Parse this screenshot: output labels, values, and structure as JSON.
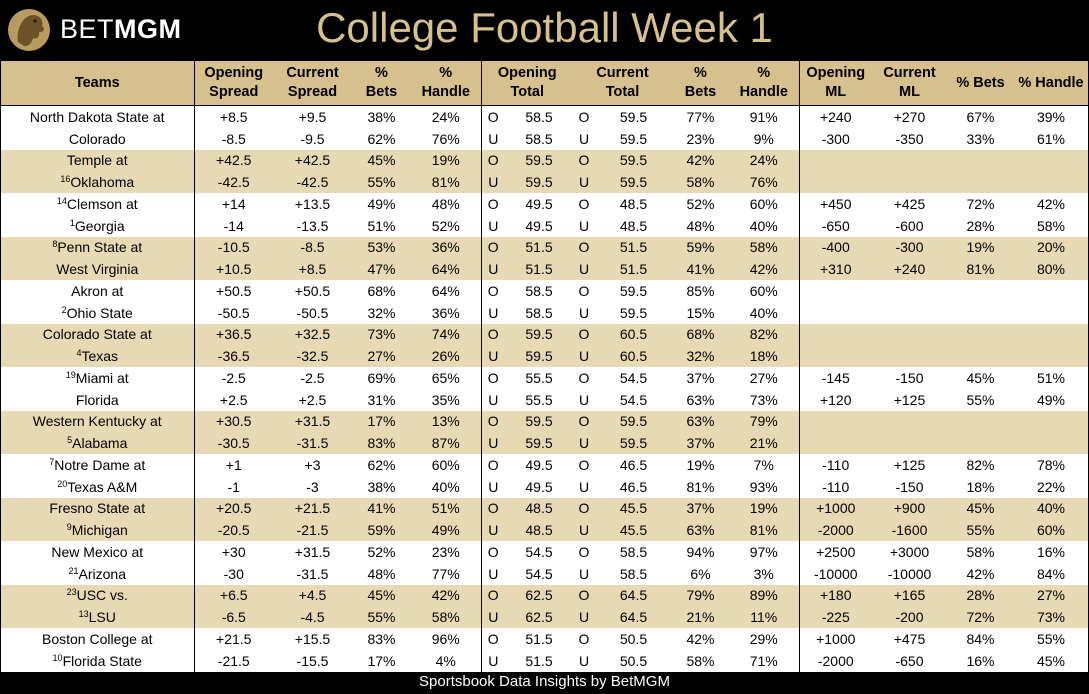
{
  "brand": {
    "light": "BET",
    "bold": "MGM"
  },
  "title": "College Football Week 1",
  "footer": "Sportsbook Data Insights by BetMGM",
  "colors": {
    "gold_header": "#d6c08e",
    "gold_row": "#e8d9b5",
    "title_gold": "#d6c08e",
    "background": "#000000"
  },
  "headers": {
    "teams": "Teams",
    "open_spread_1": "Opening",
    "open_spread_2": "Spread",
    "cur_spread_1": "Current",
    "cur_spread_2": "Spread",
    "pct_1": "%",
    "bets_2": "Bets",
    "handle_2": "Handle",
    "open_total_1": "Opening",
    "open_total_2": "Total",
    "cur_total_1": "Current",
    "cur_total_2": "Total",
    "open_ml_1": "Opening",
    "open_ml_2": "ML",
    "cur_ml_1": "Current",
    "cur_ml_2": "ML",
    "ml_bets": "% Bets",
    "ml_handle": "% Handle"
  },
  "rows": [
    {
      "rank": "",
      "team": "North Dakota State at",
      "os": "+8.5",
      "cs": "+9.5",
      "sb": "38%",
      "sh": "24%",
      "ou1": "O",
      "ot": "58.5",
      "ou2": "O",
      "ct": "59.5",
      "tb": "77%",
      "th": "91%",
      "oml": "+240",
      "cml": "+270",
      "mb": "67%",
      "mh": "39%"
    },
    {
      "rank": "",
      "team": "Colorado",
      "os": "-8.5",
      "cs": "-9.5",
      "sb": "62%",
      "sh": "76%",
      "ou1": "U",
      "ot": "58.5",
      "ou2": "U",
      "ct": "59.5",
      "tb": "23%",
      "th": "9%",
      "oml": "-300",
      "cml": "-350",
      "mb": "33%",
      "mh": "61%"
    },
    {
      "rank": "",
      "team": "Temple at",
      "os": "+42.5",
      "cs": "+42.5",
      "sb": "45%",
      "sh": "19%",
      "ou1": "O",
      "ot": "59.5",
      "ou2": "O",
      "ct": "59.5",
      "tb": "42%",
      "th": "24%",
      "oml": "",
      "cml": "",
      "mb": "",
      "mh": ""
    },
    {
      "rank": "16",
      "team": "Oklahoma",
      "os": "-42.5",
      "cs": "-42.5",
      "sb": "55%",
      "sh": "81%",
      "ou1": "U",
      "ot": "59.5",
      "ou2": "U",
      "ct": "59.5",
      "tb": "58%",
      "th": "76%",
      "oml": "",
      "cml": "",
      "mb": "",
      "mh": ""
    },
    {
      "rank": "14",
      "team": "Clemson at",
      "os": "+14",
      "cs": "+13.5",
      "sb": "49%",
      "sh": "48%",
      "ou1": "O",
      "ot": "49.5",
      "ou2": "O",
      "ct": "48.5",
      "tb": "52%",
      "th": "60%",
      "oml": "+450",
      "cml": "+425",
      "mb": "72%",
      "mh": "42%"
    },
    {
      "rank": "1",
      "team": "Georgia",
      "os": "-14",
      "cs": "-13.5",
      "sb": "51%",
      "sh": "52%",
      "ou1": "U",
      "ot": "49.5",
      "ou2": "U",
      "ct": "48.5",
      "tb": "48%",
      "th": "40%",
      "oml": "-650",
      "cml": "-600",
      "mb": "28%",
      "mh": "58%"
    },
    {
      "rank": "8",
      "team": "Penn State at",
      "os": "-10.5",
      "cs": "-8.5",
      "sb": "53%",
      "sh": "36%",
      "ou1": "O",
      "ot": "51.5",
      "ou2": "O",
      "ct": "51.5",
      "tb": "59%",
      "th": "58%",
      "oml": "-400",
      "cml": "-300",
      "mb": "19%",
      "mh": "20%"
    },
    {
      "rank": "",
      "team": "West Virginia",
      "os": "+10.5",
      "cs": "+8.5",
      "sb": "47%",
      "sh": "64%",
      "ou1": "U",
      "ot": "51.5",
      "ou2": "U",
      "ct": "51.5",
      "tb": "41%",
      "th": "42%",
      "oml": "+310",
      "cml": "+240",
      "mb": "81%",
      "mh": "80%"
    },
    {
      "rank": "",
      "team": "Akron at",
      "os": "+50.5",
      "cs": "+50.5",
      "sb": "68%",
      "sh": "64%",
      "ou1": "O",
      "ot": "58.5",
      "ou2": "O",
      "ct": "59.5",
      "tb": "85%",
      "th": "60%",
      "oml": "",
      "cml": "",
      "mb": "",
      "mh": ""
    },
    {
      "rank": "2",
      "team": "Ohio State",
      "os": "-50.5",
      "cs": "-50.5",
      "sb": "32%",
      "sh": "36%",
      "ou1": "U",
      "ot": "58.5",
      "ou2": "U",
      "ct": "59.5",
      "tb": "15%",
      "th": "40%",
      "oml": "",
      "cml": "",
      "mb": "",
      "mh": ""
    },
    {
      "rank": "",
      "team": "Colorado State at",
      "os": "+36.5",
      "cs": "+32.5",
      "sb": "73%",
      "sh": "74%",
      "ou1": "O",
      "ot": "59.5",
      "ou2": "O",
      "ct": "60.5",
      "tb": "68%",
      "th": "82%",
      "oml": "",
      "cml": "",
      "mb": "",
      "mh": ""
    },
    {
      "rank": "4",
      "team": "Texas",
      "os": "-36.5",
      "cs": "-32.5",
      "sb": "27%",
      "sh": "26%",
      "ou1": "U",
      "ot": "59.5",
      "ou2": "U",
      "ct": "60.5",
      "tb": "32%",
      "th": "18%",
      "oml": "",
      "cml": "",
      "mb": "",
      "mh": ""
    },
    {
      "rank": "19",
      "team": "Miami at",
      "os": "-2.5",
      "cs": "-2.5",
      "sb": "69%",
      "sh": "65%",
      "ou1": "O",
      "ot": "55.5",
      "ou2": "O",
      "ct": "54.5",
      "tb": "37%",
      "th": "27%",
      "oml": "-145",
      "cml": "-150",
      "mb": "45%",
      "mh": "51%"
    },
    {
      "rank": "",
      "team": "Florida",
      "os": "+2.5",
      "cs": "+2.5",
      "sb": "31%",
      "sh": "35%",
      "ou1": "U",
      "ot": "55.5",
      "ou2": "U",
      "ct": "54.5",
      "tb": "63%",
      "th": "73%",
      "oml": "+120",
      "cml": "+125",
      "mb": "55%",
      "mh": "49%"
    },
    {
      "rank": "",
      "team": "Western Kentucky at",
      "os": "+30.5",
      "cs": "+31.5",
      "sb": "17%",
      "sh": "13%",
      "ou1": "O",
      "ot": "59.5",
      "ou2": "O",
      "ct": "59.5",
      "tb": "63%",
      "th": "79%",
      "oml": "",
      "cml": "",
      "mb": "",
      "mh": ""
    },
    {
      "rank": "5",
      "team": "Alabama",
      "os": "-30.5",
      "cs": "-31.5",
      "sb": "83%",
      "sh": "87%",
      "ou1": "U",
      "ot": "59.5",
      "ou2": "U",
      "ct": "59.5",
      "tb": "37%",
      "th": "21%",
      "oml": "",
      "cml": "",
      "mb": "",
      "mh": ""
    },
    {
      "rank": "7",
      "team": "Notre Dame at",
      "os": "+1",
      "cs": "+3",
      "sb": "62%",
      "sh": "60%",
      "ou1": "O",
      "ot": "49.5",
      "ou2": "O",
      "ct": "46.5",
      "tb": "19%",
      "th": "7%",
      "oml": "-110",
      "cml": "+125",
      "mb": "82%",
      "mh": "78%"
    },
    {
      "rank": "20",
      "team": "Texas A&M",
      "os": "-1",
      "cs": "-3",
      "sb": "38%",
      "sh": "40%",
      "ou1": "U",
      "ot": "49.5",
      "ou2": "U",
      "ct": "46.5",
      "tb": "81%",
      "th": "93%",
      "oml": "-110",
      "cml": "-150",
      "mb": "18%",
      "mh": "22%"
    },
    {
      "rank": "",
      "team": "Fresno State at",
      "os": "+20.5",
      "cs": "+21.5",
      "sb": "41%",
      "sh": "51%",
      "ou1": "O",
      "ot": "48.5",
      "ou2": "O",
      "ct": "45.5",
      "tb": "37%",
      "th": "19%",
      "oml": "+1000",
      "cml": "+900",
      "mb": "45%",
      "mh": "40%"
    },
    {
      "rank": "9",
      "team": "Michigan",
      "os": "-20.5",
      "cs": "-21.5",
      "sb": "59%",
      "sh": "49%",
      "ou1": "U",
      "ot": "48.5",
      "ou2": "U",
      "ct": "45.5",
      "tb": "63%",
      "th": "81%",
      "oml": "-2000",
      "cml": "-1600",
      "mb": "55%",
      "mh": "60%"
    },
    {
      "rank": "",
      "team": "New Mexico at",
      "os": "+30",
      "cs": "+31.5",
      "sb": "52%",
      "sh": "23%",
      "ou1": "O",
      "ot": "54.5",
      "ou2": "O",
      "ct": "58.5",
      "tb": "94%",
      "th": "97%",
      "oml": "+2500",
      "cml": "+3000",
      "mb": "58%",
      "mh": "16%"
    },
    {
      "rank": "21",
      "team": "Arizona",
      "os": "-30",
      "cs": "-31.5",
      "sb": "48%",
      "sh": "77%",
      "ou1": "U",
      "ot": "54.5",
      "ou2": "U",
      "ct": "58.5",
      "tb": "6%",
      "th": "3%",
      "oml": "-10000",
      "cml": "-10000",
      "mb": "42%",
      "mh": "84%"
    },
    {
      "rank": "23",
      "team": "USC vs.",
      "os": "+6.5",
      "cs": "+4.5",
      "sb": "45%",
      "sh": "42%",
      "ou1": "O",
      "ot": "62.5",
      "ou2": "O",
      "ct": "64.5",
      "tb": "79%",
      "th": "89%",
      "oml": "+180",
      "cml": "+165",
      "mb": "28%",
      "mh": "27%"
    },
    {
      "rank": "13",
      "team": "LSU",
      "os": "-6.5",
      "cs": "-4.5",
      "sb": "55%",
      "sh": "58%",
      "ou1": "U",
      "ot": "62.5",
      "ou2": "U",
      "ct": "64.5",
      "tb": "21%",
      "th": "11%",
      "oml": "-225",
      "cml": "-200",
      "mb": "72%",
      "mh": "73%"
    },
    {
      "rank": "",
      "team": "Boston College at",
      "os": "+21.5",
      "cs": "+15.5",
      "sb": "83%",
      "sh": "96%",
      "ou1": "O",
      "ot": "51.5",
      "ou2": "O",
      "ct": "50.5",
      "tb": "42%",
      "th": "29%",
      "oml": "+1000",
      "cml": "+475",
      "mb": "84%",
      "mh": "55%"
    },
    {
      "rank": "10",
      "team": "Florida State",
      "os": "-21.5",
      "cs": "-15.5",
      "sb": "17%",
      "sh": "4%",
      "ou1": "U",
      "ot": "51.5",
      "ou2": "U",
      "ct": "50.5",
      "tb": "58%",
      "th": "71%",
      "oml": "-2000",
      "cml": "-650",
      "mb": "16%",
      "mh": "45%"
    }
  ]
}
